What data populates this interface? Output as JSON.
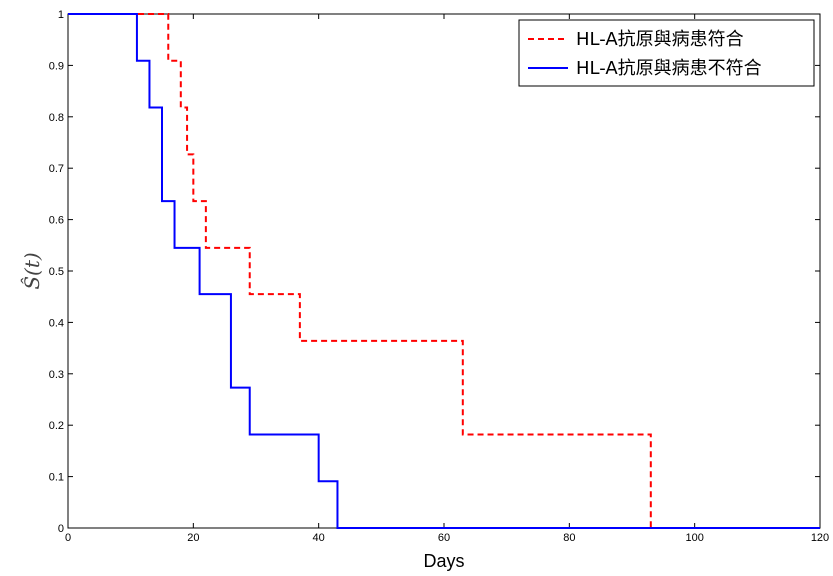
{
  "chart_data": {
    "type": "line",
    "step": true,
    "xlabel": "Days",
    "ylabel": "Ŝ(t)",
    "xlim": [
      0,
      120
    ],
    "ylim": [
      0,
      1
    ],
    "xticks": [
      0,
      20,
      40,
      60,
      80,
      100,
      120
    ],
    "yticks": [
      0,
      0.1,
      0.2,
      0.3,
      0.4,
      0.5,
      0.6,
      0.7,
      0.8,
      0.9,
      1
    ],
    "grid": false,
    "legend_position": "top-right",
    "series": [
      {
        "name": "HL-A抗原與病患符合",
        "color": "#ff0000",
        "dash": "dashed",
        "x": [
          0,
          16,
          18,
          19,
          20,
          22,
          29,
          37,
          63,
          93,
          120
        ],
        "y": [
          1,
          0.909,
          0.818,
          0.727,
          0.636,
          0.545,
          0.455,
          0.364,
          0.182,
          0,
          0
        ]
      },
      {
        "name": "HL-A抗原與病患不符合",
        "color": "#0000ff",
        "dash": "solid",
        "x": [
          0,
          11,
          13,
          15,
          17,
          21,
          26,
          29,
          40,
          43,
          120
        ],
        "y": [
          1,
          0.909,
          0.818,
          0.636,
          0.545,
          0.455,
          0.273,
          0.182,
          0.091,
          0,
          0
        ]
      }
    ]
  }
}
